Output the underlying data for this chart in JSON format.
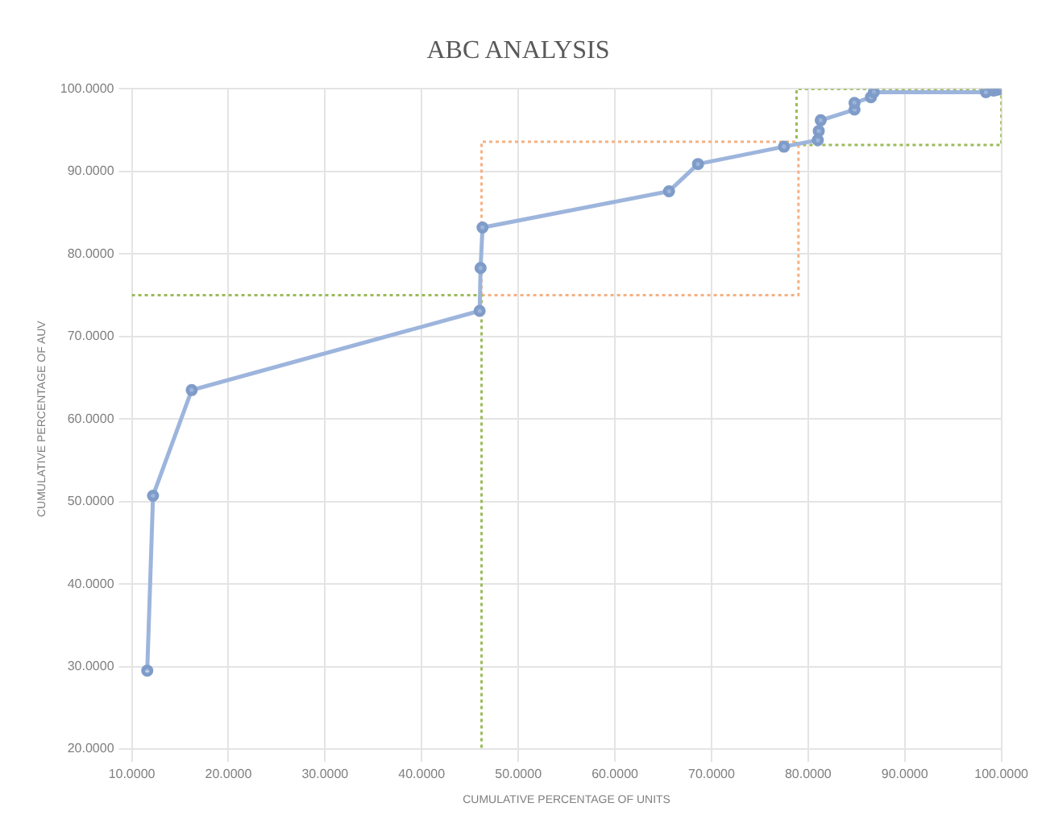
{
  "chart_data": {
    "type": "line",
    "title": "ABC ANALYSIS",
    "xlabel": "CUMULATIVE PERCENTAGE OF UNITS",
    "ylabel": "CUMULATIVE PERCENTAGE OF AUV",
    "xlim": [
      10,
      100
    ],
    "ylim": [
      20,
      100
    ],
    "xticks": [
      {
        "value": 10,
        "label": "10.0000"
      },
      {
        "value": 20,
        "label": "20.0000"
      },
      {
        "value": 30,
        "label": "30.0000"
      },
      {
        "value": 40,
        "label": "40.0000"
      },
      {
        "value": 50,
        "label": "50.0000"
      },
      {
        "value": 60,
        "label": "60.0000"
      },
      {
        "value": 70,
        "label": "70.0000"
      },
      {
        "value": 80,
        "label": "80.0000"
      },
      {
        "value": 90,
        "label": "90.0000"
      },
      {
        "value": 100,
        "label": "100.0000"
      }
    ],
    "yticks": [
      {
        "value": 20,
        "label": "20.0000"
      },
      {
        "value": 30,
        "label": "30.0000"
      },
      {
        "value": 40,
        "label": "40.0000"
      },
      {
        "value": 50,
        "label": "50.0000"
      },
      {
        "value": 60,
        "label": "60.0000"
      },
      {
        "value": 70,
        "label": "70.0000"
      },
      {
        "value": 80,
        "label": "80.0000"
      },
      {
        "value": 90,
        "label": "90.0000"
      },
      {
        "value": 100,
        "label": "100.0000"
      }
    ],
    "grid": true,
    "marker": "circle",
    "series": [
      {
        "color": "#9db5dc",
        "x": [
          11.6,
          12.2,
          16.2,
          46.0,
          46.1,
          46.3,
          65.6,
          68.6,
          77.5,
          81.0,
          81.1,
          81.3,
          84.8,
          84.8,
          86.5,
          86.8,
          98.4,
          99.2,
          99.6,
          100
        ],
        "values": [
          29.5,
          50.7,
          63.5,
          73.1,
          78.3,
          83.2,
          87.6,
          90.9,
          93.0,
          93.8,
          94.9,
          96.2,
          97.5,
          98.3,
          99.0,
          99.6,
          99.6,
          99.8,
          99.9,
          100
        ]
      },
      {
        "type": "line",
        "marker": "none",
        "line_style": "dotted",
        "color": "#9bbb59",
        "x": [
          10,
          46.2,
          46.2
        ],
        "values": [
          75,
          75,
          20
        ]
      },
      {
        "type": "line",
        "marker": "none",
        "line_style": "dotted",
        "color": "#f4b183",
        "x": [
          46.2,
          79.0,
          79.0
        ],
        "values": [
          75,
          75,
          93.6
        ]
      },
      {
        "type": "line",
        "marker": "none",
        "line_style": "dotted",
        "color": "#f4b183",
        "x": [
          46.2,
          46.2,
          79.0
        ],
        "values": [
          75,
          93.6,
          93.6
        ]
      },
      {
        "type": "line",
        "marker": "none",
        "line_style": "dotted",
        "color": "#9bbb59",
        "x": [
          78.8,
          100,
          100
        ],
        "values": [
          93.2,
          93.2,
          100
        ]
      },
      {
        "type": "line",
        "marker": "none",
        "line_style": "dotted",
        "color": "#9bbb59",
        "x": [
          78.8,
          78.8,
          100
        ],
        "values": [
          93.2,
          100,
          100
        ]
      }
    ]
  }
}
